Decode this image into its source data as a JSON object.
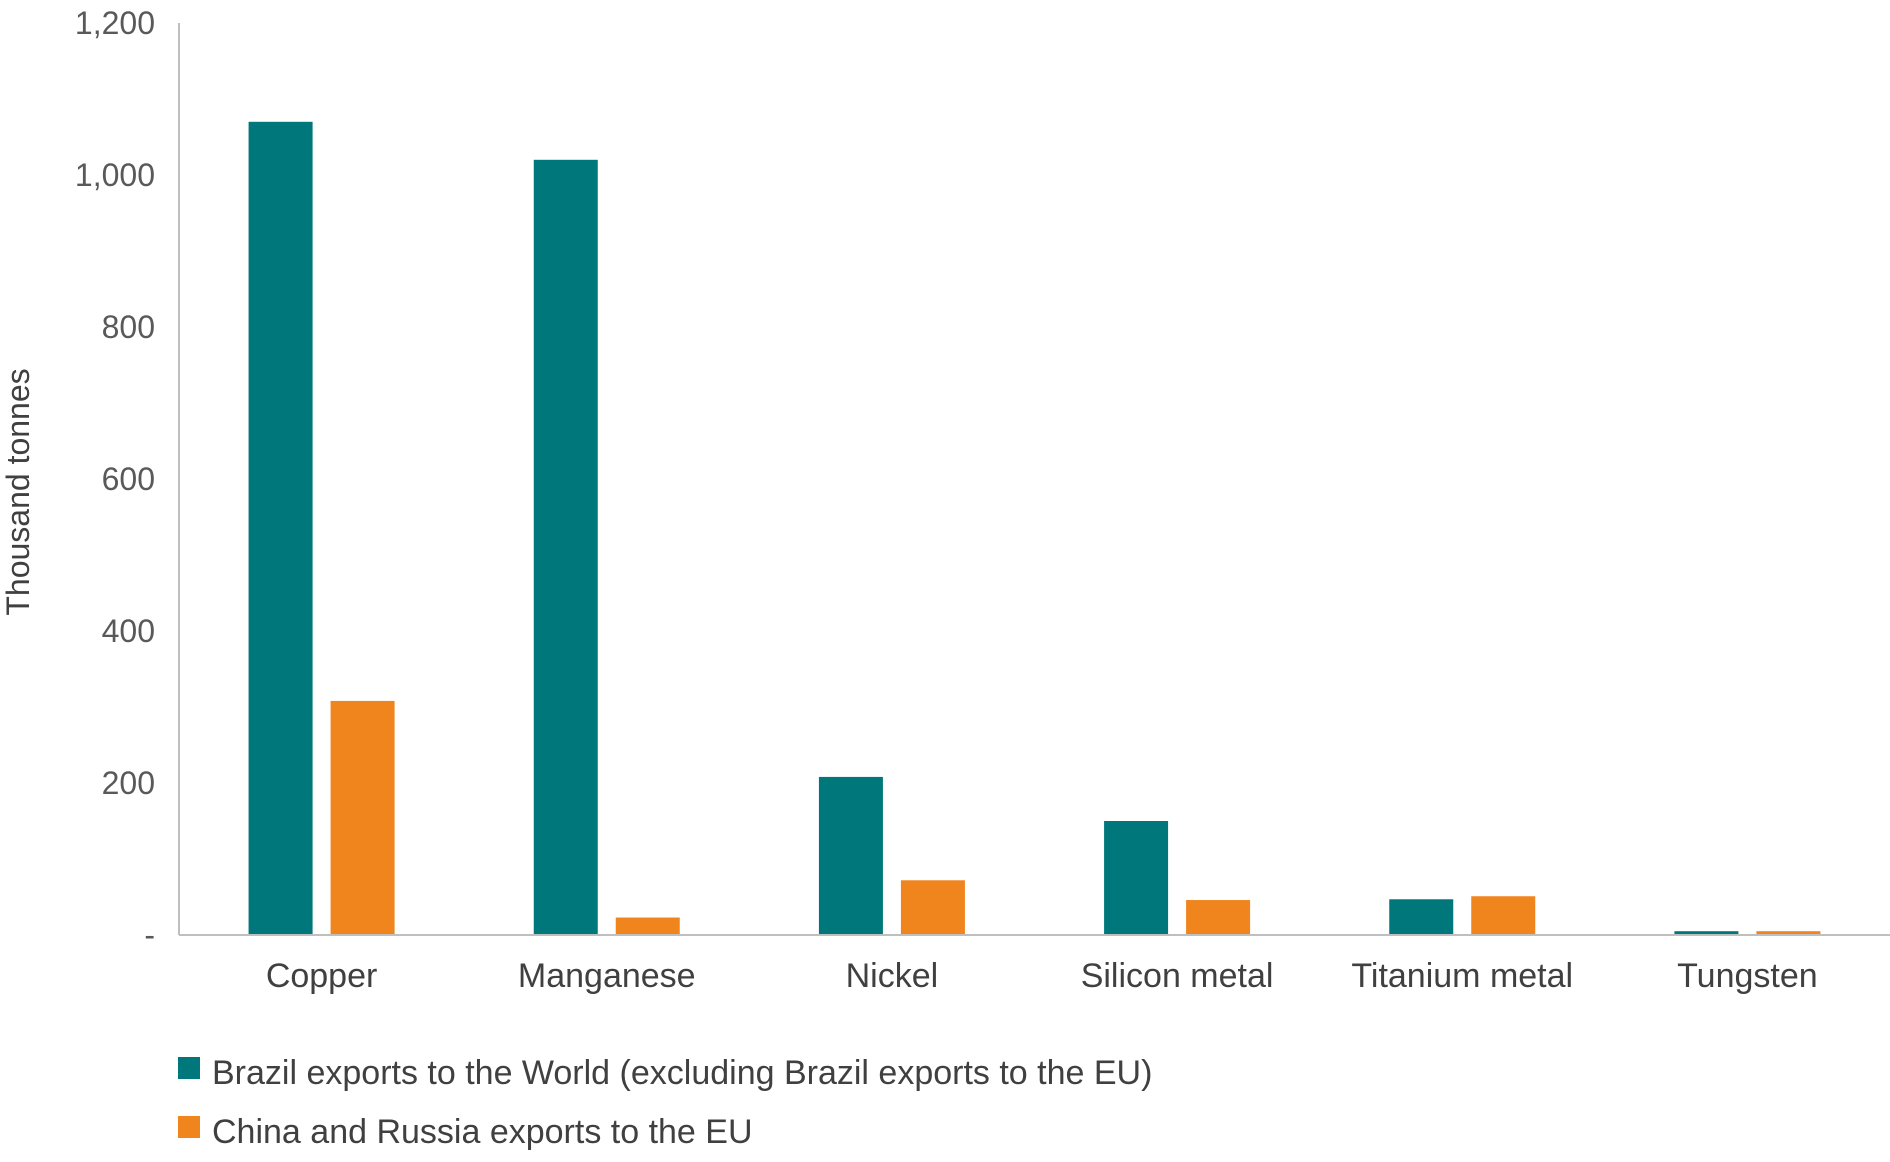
{
  "chart_data": {
    "type": "bar",
    "title": "",
    "xlabel": "",
    "ylabel": "Thousand tonnes",
    "ylim": [
      0,
      1200
    ],
    "yticks": [
      0,
      200,
      400,
      600,
      800,
      1000,
      1200
    ],
    "ytick_labels": [
      "-",
      "200",
      "400",
      "600",
      "800",
      "1,000",
      "1,200"
    ],
    "categories": [
      "Copper",
      "Manganese",
      "Nickel",
      "Silicon metal",
      "Titanium metal",
      "Tungsten"
    ],
    "series": [
      {
        "name": "Brazil exports to the World (excluding Brazil exports to the EU)",
        "color": "#00777A",
        "values": [
          1070,
          1020,
          208,
          150,
          47,
          5
        ]
      },
      {
        "name": "China and Russia exports to the EU",
        "color": "#F0841D",
        "values": [
          308,
          23,
          72,
          46,
          51,
          5
        ]
      }
    ],
    "grid": false,
    "legend_position": "bottom-left"
  }
}
